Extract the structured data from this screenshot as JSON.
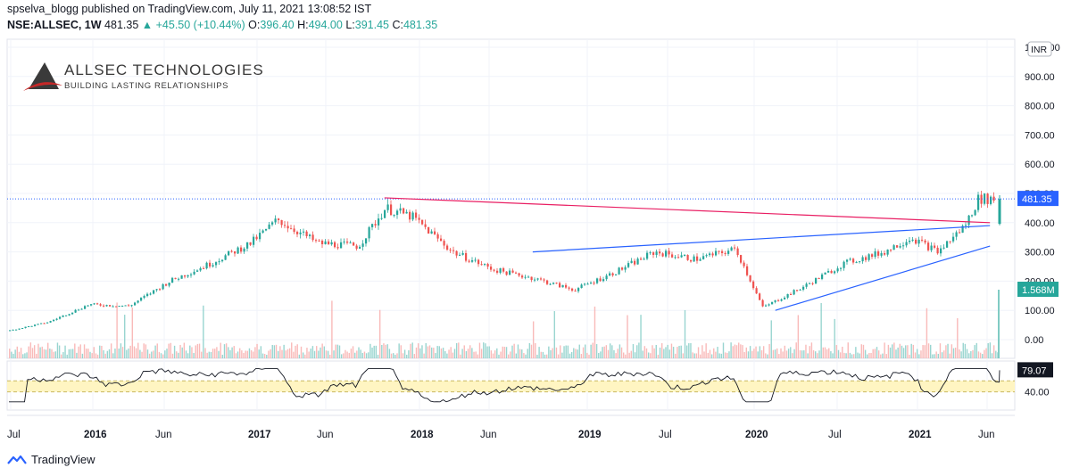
{
  "header": {
    "publisher_line": "spselva_blogg published on TradingView.com, July 11, 2021 13:08:52 IST",
    "symbol": "NSE:ALLSEC, 1W",
    "last": "481.35",
    "change": "▲ +45.50 (+10.44%)",
    "o_label": "O:",
    "o_val": "396.40",
    "h_label": "H:",
    "h_val": "494.00",
    "l_label": "L:",
    "l_val": "391.45",
    "c_label": "C:",
    "c_val": "481.35"
  },
  "logo": {
    "name": "ALLSEC TECHNOLOGIES",
    "tagline": "BUILDING LASTING RELATIONSHIPS"
  },
  "footer": {
    "brand": "TradingView"
  },
  "colors": {
    "up": "#26a69a",
    "down": "#ef5350",
    "trendline_red": "#e91e63",
    "trendline_blue": "#2962ff",
    "rsi_band": "#fff5c2",
    "price_label": "#2962ff",
    "vol_label": "#26a69a"
  },
  "chart_data": {
    "type": "candlestick",
    "price_axis": {
      "currency": "INR",
      "ticks": [
        "1000.00",
        "900.00",
        "800.00",
        "700.00",
        "600.00",
        "500.00",
        "400.00",
        "300.00",
        "200.00",
        "100.00",
        "0.00"
      ],
      "last_price_label": "481.35",
      "volume_label": "1.568M"
    },
    "rsi_axis": {
      "ticks": [
        "40.00"
      ],
      "value_label": "79.07",
      "band": [
        40,
        60
      ]
    },
    "time_axis": [
      "Jul",
      "2016",
      "Jun",
      "2017",
      "Jun",
      "2018",
      "Jun",
      "2019",
      "Jul",
      "2020",
      "Jul",
      "2021",
      "Jun"
    ],
    "approx_weekly_close": [
      [
        "2015-07",
        30
      ],
      [
        "2015-10",
        60
      ],
      [
        "2016-01",
        120
      ],
      [
        "2016-04",
        115
      ],
      [
        "2016-07",
        200
      ],
      [
        "2016-10",
        260
      ],
      [
        "2017-01",
        330
      ],
      [
        "2017-03",
        410
      ],
      [
        "2017-06",
        330
      ],
      [
        "2017-09",
        320
      ],
      [
        "2017-11",
        450
      ],
      [
        "2018-01",
        420
      ],
      [
        "2018-04",
        300
      ],
      [
        "2018-07",
        240
      ],
      [
        "2018-10",
        210
      ],
      [
        "2019-01",
        170
      ],
      [
        "2019-04",
        230
      ],
      [
        "2019-07",
        300
      ],
      [
        "2019-10",
        275
      ],
      [
        "2020-01",
        310
      ],
      [
        "2020-03",
        110
      ],
      [
        "2020-06",
        180
      ],
      [
        "2020-09",
        260
      ],
      [
        "2020-12",
        300
      ],
      [
        "2021-02",
        350
      ],
      [
        "2021-04",
        300
      ],
      [
        "2021-06",
        390
      ],
      [
        "2021-07",
        481.35
      ]
    ],
    "trendlines": [
      {
        "name": "",
        "color": "#e91e63",
        "points": [
          [
            "2017-11",
            485
          ],
          [
            "2021-07",
            400
          ]
        ]
      },
      {
        "name": "",
        "color": "#2962ff",
        "points": [
          [
            "2018-10",
            300
          ],
          [
            "2021-07",
            390
          ]
        ]
      },
      {
        "name": "",
        "color": "#2962ff",
        "points": [
          [
            "2020-04",
            100
          ],
          [
            "2021-07",
            320
          ]
        ]
      }
    ]
  }
}
